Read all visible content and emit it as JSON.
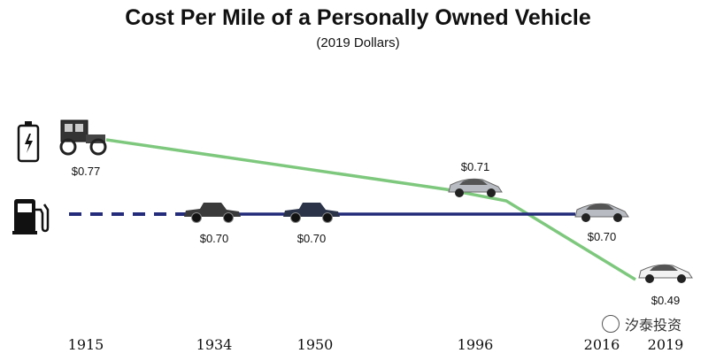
{
  "chart_data": {
    "type": "line",
    "title": "Cost Per Mile of a Personally Owned Vehicle",
    "subtitle": "(2019 Dollars)",
    "xlabel": "",
    "ylabel": "",
    "x": [
      "1915",
      "1934",
      "1950",
      "1996",
      "2016",
      "2019"
    ],
    "series": [
      {
        "icon": "battery-icon",
        "color": "#7ec87e",
        "x": [
          "1915",
          "1996",
          "2019"
        ],
        "values": [
          0.77,
          0.71,
          0.49
        ],
        "labels": [
          "$0.77",
          "$0.71",
          "$0.49"
        ]
      },
      {
        "icon": "fuel-pump-icon",
        "color": "#232b7a",
        "x": [
          "1934",
          "1950",
          "2016"
        ],
        "values": [
          0.7,
          0.7,
          0.7
        ],
        "labels": [
          "$0.70",
          "$0.70",
          "$0.70"
        ],
        "dashed_lead_in": true
      }
    ],
    "grid": false,
    "legend": "left"
  },
  "watermark": "汐泰投资"
}
